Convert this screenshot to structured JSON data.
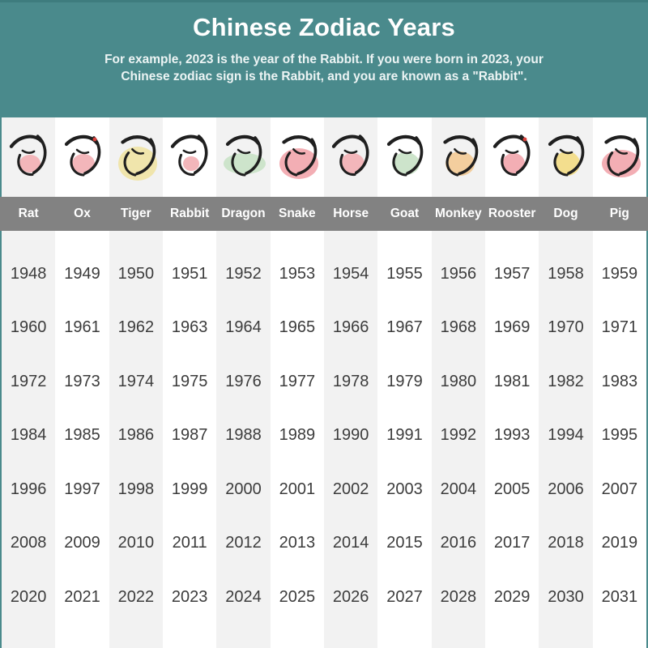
{
  "header": {
    "title": "Chinese Zodiac Years",
    "subtitle_line1": "For example, 2023 is the year of the Rabbit. If you were born in 2023, your",
    "subtitle_line2": "Chinese zodiac sign is the Rabbit, and you are known as a \"Rabbit\"."
  },
  "colors": {
    "header_bg": "#4A8A8C",
    "header_top_line": "#3E7C7E",
    "name_band_bg": "#828282",
    "alt_column_bg": "#F2F2F2",
    "year_text": "#3C3C3C",
    "label_text": "#FFFFFF",
    "ink_stroke": "#1F1F1F"
  },
  "zodiac": {
    "animals": [
      {
        "name": "Rat",
        "character": "子",
        "blob_color": "#F3B6BA",
        "blob_rx": 13,
        "blob_ry": 11,
        "accent_color": null
      },
      {
        "name": "Ox",
        "character": "丑",
        "blob_color": "#F3B6BA",
        "blob_rx": 14,
        "blob_ry": 12,
        "accent_color": "#D9413C"
      },
      {
        "name": "Tiger",
        "character": "寅",
        "blob_color": "#F0E5AC",
        "blob_rx": 24,
        "blob_ry": 21,
        "accent_color": null
      },
      {
        "name": "Rabbit",
        "character": "卯",
        "blob_color": "#F3B6BA",
        "blob_rx": 10,
        "blob_ry": 9,
        "accent_color": null
      },
      {
        "name": "Dragon",
        "character": "辰",
        "blob_color": "#CDE4CB",
        "blob_rx": 26,
        "blob_ry": 13,
        "accent_color": null
      },
      {
        "name": "Snake",
        "character": "巳",
        "blob_color": "#F3AEB4",
        "blob_rx": 24,
        "blob_ry": 19,
        "accent_color": null
      },
      {
        "name": "Horse",
        "character": "午",
        "blob_color": "#F3B6BA",
        "blob_rx": 15,
        "blob_ry": 13,
        "accent_color": null
      },
      {
        "name": "Goat",
        "character": "未",
        "blob_color": "#CDE4CB",
        "blob_rx": 17,
        "blob_ry": 14,
        "accent_color": null
      },
      {
        "name": "Monkey",
        "character": "申",
        "blob_color": "#F3CE9E",
        "blob_rx": 18,
        "blob_ry": 15,
        "accent_color": null
      },
      {
        "name": "Rooster",
        "character": "酉",
        "blob_color": "#F3AEB4",
        "blob_rx": 14,
        "blob_ry": 13,
        "accent_color": "#D9413C"
      },
      {
        "name": "Dog",
        "character": "戌",
        "blob_color": "#F3DE8E",
        "blob_rx": 16,
        "blob_ry": 15,
        "accent_color": null
      },
      {
        "name": "Pig",
        "character": "亥",
        "blob_color": "#F3AEB4",
        "blob_rx": 24,
        "blob_ry": 17,
        "accent_color": null
      }
    ]
  },
  "chart_data": {
    "type": "table",
    "title": "Chinese Zodiac Years",
    "subtitle": "For example, 2023 is the year of the Rabbit. If you were born in 2023, your Chinese zodiac sign is the Rabbit, and you are known as a \"Rabbit\".",
    "columns": [
      "Rat",
      "Ox",
      "Tiger",
      "Rabbit",
      "Dragon",
      "Snake",
      "Horse",
      "Goat",
      "Monkey",
      "Rooster",
      "Dog",
      "Pig"
    ],
    "rows": [
      [
        1948,
        1949,
        1950,
        1951,
        1952,
        1953,
        1954,
        1955,
        1956,
        1957,
        1958,
        1959
      ],
      [
        1960,
        1961,
        1962,
        1963,
        1964,
        1965,
        1966,
        1967,
        1968,
        1969,
        1970,
        1971
      ],
      [
        1972,
        1973,
        1974,
        1975,
        1976,
        1977,
        1978,
        1979,
        1980,
        1981,
        1982,
        1983
      ],
      [
        1984,
        1985,
        1986,
        1987,
        1988,
        1989,
        1990,
        1991,
        1992,
        1993,
        1994,
        1995
      ],
      [
        1996,
        1997,
        1998,
        1999,
        2000,
        2001,
        2002,
        2003,
        2004,
        2005,
        2006,
        2007
      ],
      [
        2008,
        2009,
        2010,
        2011,
        2012,
        2013,
        2014,
        2015,
        2016,
        2017,
        2018,
        2019
      ],
      [
        2020,
        2021,
        2022,
        2023,
        2024,
        2025,
        2026,
        2027,
        2028,
        2029,
        2030,
        2031
      ]
    ]
  }
}
